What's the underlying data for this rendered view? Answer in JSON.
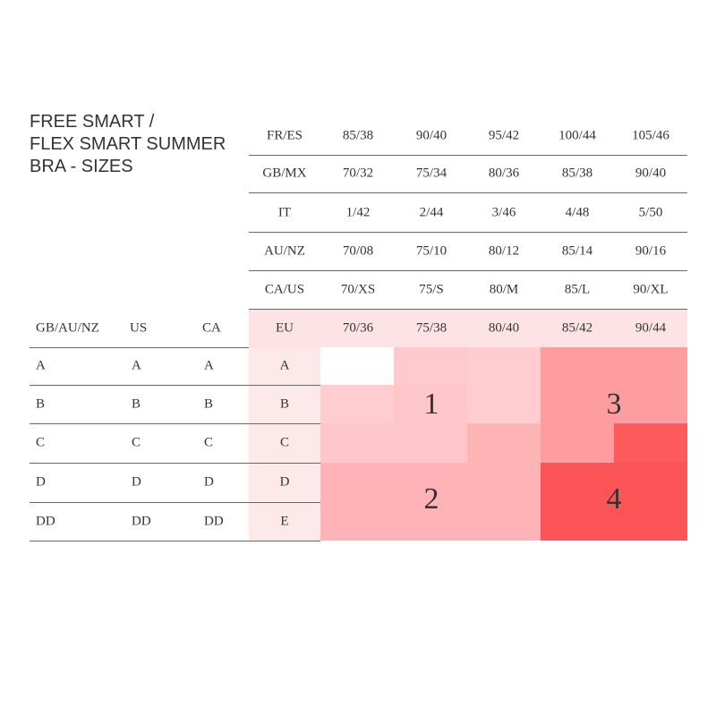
{
  "header": {
    "title_lines": [
      "FREE SMART /",
      "FLEX SMART SUMMER",
      "BRA - SIZES"
    ]
  },
  "top_table": {
    "rows": [
      [
        "FR/ES",
        "85/38",
        "90/40",
        "95/42",
        "100/44",
        "105/46"
      ],
      [
        "GB/MX",
        "70/32",
        "75/34",
        "80/36",
        "85/38",
        "90/40"
      ],
      [
        "IT",
        "1/42",
        "2/44",
        "3/46",
        "4/48",
        "5/50"
      ],
      [
        "AU/NZ",
        "70/08",
        "75/10",
        "80/12",
        "85/14",
        "90/16"
      ],
      [
        "CA/US",
        "70/XS",
        "75/S",
        "80/M",
        "85/L",
        "90/XL"
      ]
    ]
  },
  "bottom_table": {
    "header": [
      "GB/AU/NZ",
      "US",
      "CA",
      "EU",
      "70/36",
      "75/38",
      "80/40",
      "85/42",
      "90/44"
    ],
    "rows": [
      [
        "A",
        "A",
        "A",
        "A"
      ],
      [
        "B",
        "B",
        "B",
        "B"
      ],
      [
        "C",
        "C",
        "C",
        "C"
      ],
      [
        "D",
        "D",
        "D",
        "D"
      ],
      [
        "DD",
        "DD",
        "DD",
        "E"
      ]
    ]
  },
  "zones": [
    "1",
    "2",
    "3",
    "4"
  ]
}
